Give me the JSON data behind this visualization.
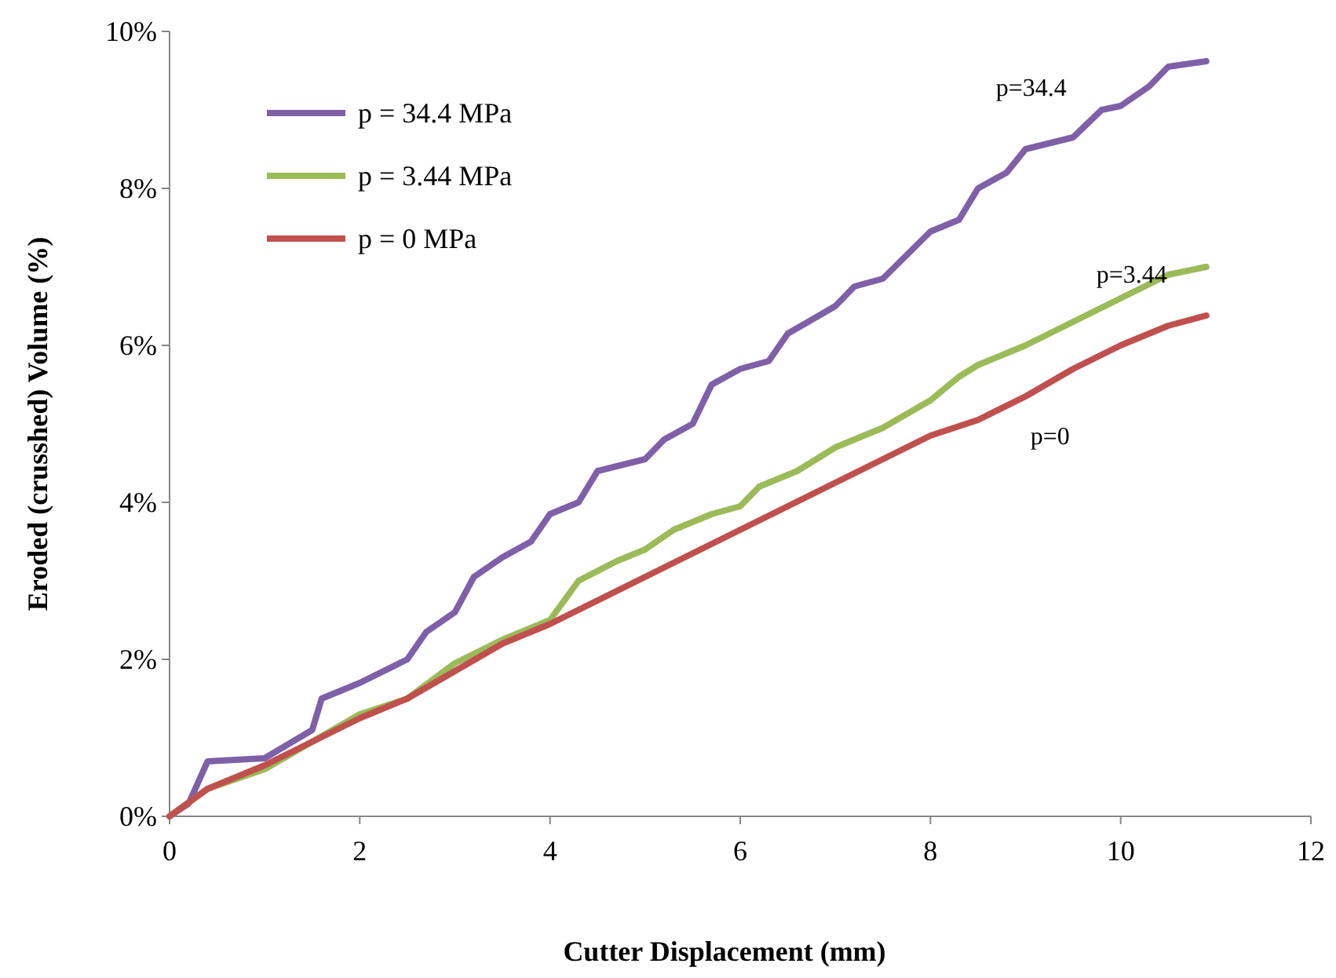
{
  "chart_data": {
    "type": "line",
    "xlabel": "Cutter Displacement (mm)",
    "ylabel": "Eroded (crusshed) Volume (%)",
    "xlim": [
      0,
      12
    ],
    "xticks": [
      0,
      2,
      4,
      6,
      8,
      10,
      12
    ],
    "ylim": [
      0,
      10
    ],
    "yticks": [
      {
        "value": 0,
        "label": "0%"
      },
      {
        "value": 2,
        "label": "2%"
      },
      {
        "value": 4,
        "label": "4%"
      },
      {
        "value": 6,
        "label": "6%"
      },
      {
        "value": 8,
        "label": "8%"
      },
      {
        "value": 10,
        "label": "10%"
      }
    ],
    "grid": false,
    "legend": "top left",
    "marker": "none",
    "line_style": "solid",
    "annotations": [
      "p=34.4",
      "p=3.44",
      "p=0"
    ],
    "series": [
      {
        "name": "p = 34.4 MPa",
        "color": "#7f60a8",
        "x": [
          0,
          0.2,
          0.4,
          1.0,
          1.5,
          1.6,
          2.0,
          2.5,
          2.7,
          3.0,
          3.2,
          3.5,
          3.8,
          4.0,
          4.3,
          4.5,
          5.0,
          5.2,
          5.5,
          5.7,
          6.0,
          6.3,
          6.5,
          7.0,
          7.2,
          7.5,
          8.0,
          8.3,
          8.5,
          8.8,
          9.0,
          9.5,
          9.8,
          10.0,
          10.3,
          10.5,
          10.9
        ],
        "values": [
          0,
          0.16,
          0.7,
          0.74,
          1.1,
          1.5,
          1.7,
          2.0,
          2.35,
          2.6,
          3.05,
          3.3,
          3.5,
          3.85,
          4.0,
          4.4,
          4.55,
          4.8,
          5.0,
          5.5,
          5.7,
          5.8,
          6.15,
          6.5,
          6.75,
          6.85,
          7.45,
          7.6,
          8.0,
          8.2,
          8.5,
          8.65,
          9.0,
          9.05,
          9.3,
          9.55,
          9.62
        ]
      },
      {
        "name": "p = 3.44 MPa",
        "color": "#9bbb59",
        "x": [
          0,
          0.4,
          1.0,
          1.5,
          2.0,
          2.5,
          3.0,
          3.5,
          4.0,
          4.3,
          4.7,
          5.0,
          5.3,
          5.7,
          6.0,
          6.2,
          6.6,
          7.0,
          7.5,
          8.0,
          8.3,
          8.5,
          9.0,
          9.5,
          10.0,
          10.5,
          10.9
        ],
        "values": [
          0,
          0.35,
          0.6,
          0.95,
          1.3,
          1.5,
          1.95,
          2.25,
          2.5,
          3.0,
          3.25,
          3.4,
          3.65,
          3.85,
          3.95,
          4.2,
          4.4,
          4.7,
          4.95,
          5.3,
          5.6,
          5.75,
          6.0,
          6.3,
          6.6,
          6.9,
          7.0
        ]
      },
      {
        "name": "p = 0 MPa",
        "color": "#c0504d",
        "x": [
          0,
          0.4,
          1.0,
          1.5,
          2.0,
          2.5,
          3.0,
          3.5,
          4.0,
          4.5,
          5.0,
          5.5,
          6.0,
          6.5,
          7.0,
          7.5,
          8.0,
          8.5,
          9.0,
          9.5,
          10.0,
          10.5,
          10.9
        ],
        "values": [
          0,
          0.35,
          0.65,
          0.95,
          1.25,
          1.5,
          1.85,
          2.2,
          2.45,
          2.75,
          3.05,
          3.35,
          3.65,
          3.95,
          4.25,
          4.55,
          4.85,
          5.05,
          5.35,
          5.7,
          6.0,
          6.25,
          6.38
        ]
      }
    ]
  }
}
